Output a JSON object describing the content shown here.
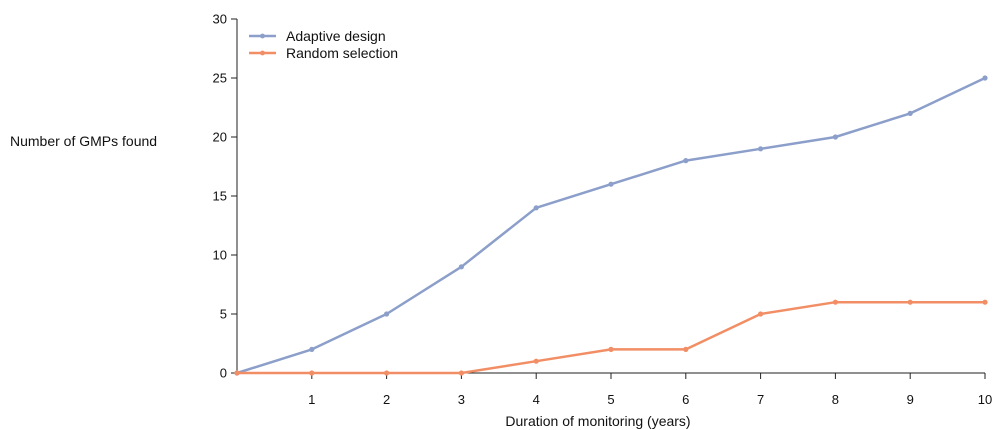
{
  "chart_data": {
    "type": "line",
    "title": "",
    "xlabel": "Duration of monitoring (years)",
    "ylabel": "Number of GMPs found",
    "x": [
      0,
      1,
      2,
      3,
      4,
      5,
      6,
      7,
      8,
      9,
      10
    ],
    "x_tick_labels": [
      "1",
      "2",
      "3",
      "4",
      "5",
      "6",
      "7",
      "8",
      "9",
      "10"
    ],
    "y_tick_labels": [
      "0",
      "5",
      "10",
      "15",
      "20",
      "25",
      "30"
    ],
    "xlim": [
      0,
      10
    ],
    "ylim": [
      0,
      30
    ],
    "grid": false,
    "legend_position": "top-left",
    "series": [
      {
        "name": "Adaptive design",
        "color": "#8C9FCA",
        "values": [
          0,
          2,
          5,
          9,
          14,
          16,
          18,
          19,
          20,
          22,
          25
        ]
      },
      {
        "name": "Random selection",
        "color": "#F28E65",
        "values": [
          0,
          0,
          0,
          0,
          1,
          2,
          2,
          5,
          6,
          6,
          6
        ]
      }
    ]
  }
}
